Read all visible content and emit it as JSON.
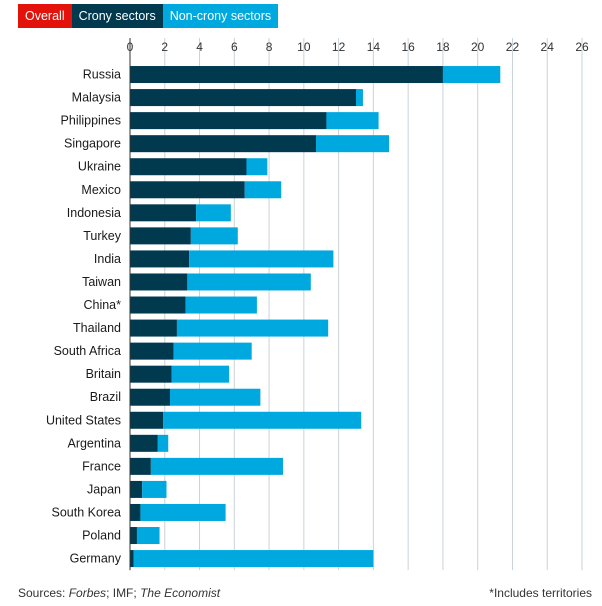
{
  "tabs": [
    {
      "label": "Overall",
      "color": "#e3120b",
      "active": false
    },
    {
      "label": "Crony sectors",
      "color": "#01394f",
      "active": true
    },
    {
      "label": "Non-crony sectors",
      "color": "#00a8e0",
      "active": true
    }
  ],
  "footer": {
    "sources_label": "Sources:",
    "source_1": "Forbes",
    "sep_1": "; IMF; ",
    "source_2": "The Economist",
    "note": "*Includes territories"
  },
  "chart_data": {
    "type": "bar",
    "orientation": "horizontal",
    "stacked": true,
    "xlim": [
      0,
      26
    ],
    "x_ticks": [
      0,
      2,
      4,
      6,
      8,
      10,
      12,
      14,
      16,
      18,
      20,
      22,
      24,
      26
    ],
    "grid": true,
    "categories": [
      "Russia",
      "Malaysia",
      "Philippines",
      "Singapore",
      "Ukraine",
      "Mexico",
      "Indonesia",
      "Turkey",
      "India",
      "Taiwan",
      "China*",
      "Thailand",
      "South Africa",
      "Britain",
      "Brazil",
      "United States",
      "Argentina",
      "France",
      "Japan",
      "South Korea",
      "Poland",
      "Germany"
    ],
    "series": [
      {
        "name": "Crony sectors",
        "color": "#01394f",
        "values": [
          18.0,
          13.0,
          11.3,
          10.7,
          6.7,
          6.6,
          3.8,
          3.5,
          3.4,
          3.3,
          3.2,
          2.7,
          2.5,
          2.4,
          2.3,
          1.9,
          1.6,
          1.2,
          0.7,
          0.6,
          0.4,
          0.2
        ]
      },
      {
        "name": "Non-crony sectors",
        "color": "#00a8e0",
        "values": [
          3.3,
          0.4,
          3.0,
          4.2,
          1.2,
          2.1,
          2.0,
          2.7,
          8.3,
          7.1,
          4.1,
          8.7,
          4.5,
          3.3,
          5.2,
          11.4,
          0.6,
          7.6,
          1.4,
          4.9,
          1.3,
          13.8
        ]
      }
    ]
  }
}
